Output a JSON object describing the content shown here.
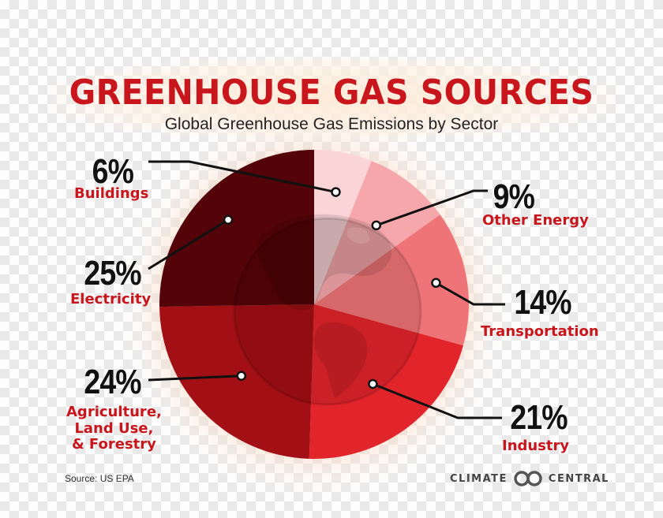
{
  "header": {
    "title": "GREENHOUSE GAS SOURCES",
    "subtitle": "Global Greenhouse Gas Emissions by Sector"
  },
  "chart_data": {
    "type": "pie",
    "title": "GREENHOUSE GAS SOURCES",
    "subtitle": "Global Greenhouse Gas Emissions by Sector",
    "unit": "%",
    "slices": [
      {
        "label": "Buildings",
        "value": 6,
        "display": "6%",
        "color": "#fad4d6"
      },
      {
        "label": "Other Energy",
        "value": 9,
        "display": "9%",
        "color": "#f5a7ab"
      },
      {
        "label": "Transportation",
        "value": 14,
        "display": "14%",
        "color": "#ef7477"
      },
      {
        "label": "Industry",
        "value": 21,
        "display": "21%",
        "color": "#e2242b"
      },
      {
        "label": "Agriculture, Land Use, & Forestry",
        "label_lines": [
          "Agriculture,",
          "Land Use,",
          "& Forestry"
        ],
        "value": 24,
        "display": "24%",
        "color": "#a20f15"
      },
      {
        "label": "Electricity",
        "value": 25,
        "display": "25%",
        "color": "#540408"
      }
    ],
    "legend": "none"
  },
  "footer": {
    "source": "Source: US EPA",
    "brand_left": "CLIMATE",
    "brand_right": "CENTRAL",
    "logo_icon": "climate-central-logo-icon"
  }
}
